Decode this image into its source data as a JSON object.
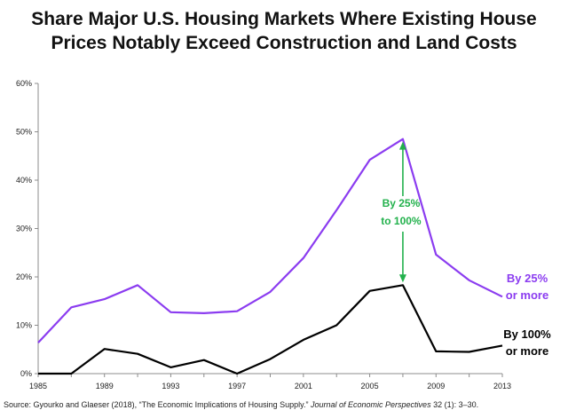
{
  "chart_data": {
    "type": "line",
    "title_lines": [
      "Share Major U.S. Housing Markets Where Existing House",
      "Prices  Notably Exceed  Construction and Land Costs"
    ],
    "x": [
      1985,
      1987,
      1989,
      1991,
      1993,
      1995,
      1997,
      1999,
      2001,
      2003,
      2005,
      2007,
      2009,
      2011,
      2013
    ],
    "x_ticks": [
      "1985",
      "1989",
      "1993",
      "1997",
      "2001",
      "2005",
      "2009",
      "2013"
    ],
    "x_tick_values": [
      1985,
      1989,
      1993,
      1997,
      2001,
      2005,
      2009,
      2013
    ],
    "xlim": [
      1985,
      2013
    ],
    "y_ticks": [
      "0%",
      "10%",
      "20%",
      "30%",
      "40%",
      "50%",
      "60%"
    ],
    "y_tick_values": [
      0,
      10,
      20,
      30,
      40,
      50,
      60
    ],
    "ylim": [
      0,
      60
    ],
    "grid": false,
    "series": [
      {
        "name": "By 25% or more",
        "label_lines": [
          "By 25%",
          "or more"
        ],
        "color": "#8b3cf0",
        "values": [
          6.4,
          13.7,
          15.4,
          18.3,
          12.7,
          12.5,
          12.9,
          16.9,
          23.9,
          33.8,
          44.2,
          48.5,
          24.6,
          19.3,
          15.9
        ]
      },
      {
        "name": "By 100% or more",
        "label_lines": [
          "By 100%",
          "or more"
        ],
        "color": "#000000",
        "values": [
          0.0,
          0.0,
          5.1,
          4.1,
          1.3,
          2.8,
          0.0,
          3.0,
          7.0,
          10.0,
          17.1,
          18.3,
          4.6,
          4.5,
          5.8
        ]
      }
    ],
    "annotation": {
      "label_lines": [
        "By 25%",
        "to 100%"
      ],
      "color": "#22b14c",
      "x": 2007,
      "from": 18.3,
      "to": 48.5
    },
    "source": {
      "prefix": "Source: Gyourko and Glaeser (2018),  “The Economic Implications of Housing Supply.” ",
      "journal": "Journal of Economic Perspectives",
      "suffix": " 32 (1): 3–30."
    }
  }
}
